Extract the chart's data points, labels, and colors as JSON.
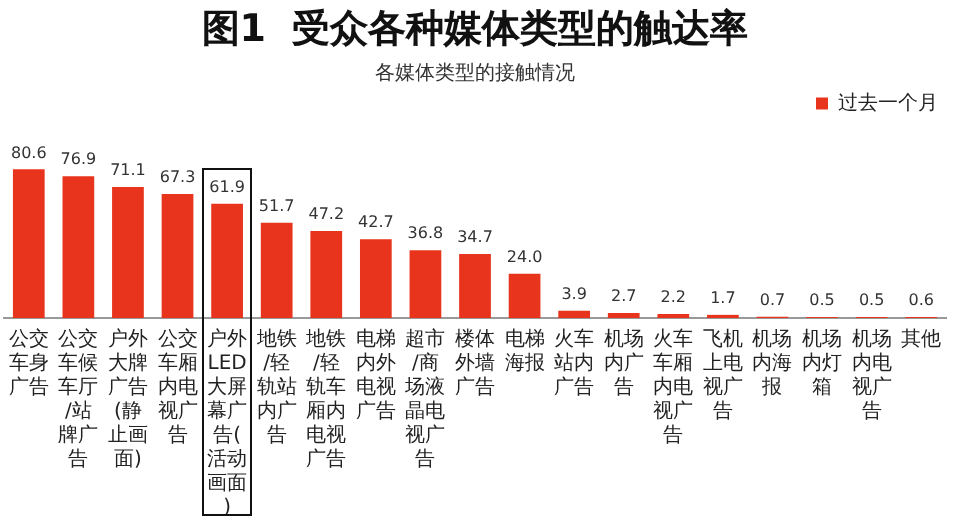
{
  "chart_data": {
    "type": "bar",
    "title": "图1  受众各种媒体类型的触达率",
    "subtitle": "各媒体类型的接触情况",
    "categories": [
      "公交车身广告",
      "公交车候车厅/站牌广告",
      "户外大牌广告(静止画面)",
      "公交车厢内电视广告",
      "户外LED大屏幕广告(活动画面)",
      "地铁/轻轨站内广告",
      "地铁/轻轨车厢内电视广告",
      "电梯内外电视广告",
      "超市/商场液晶电视广告",
      "楼体外墙广告",
      "电梯海报",
      "火车站内广告",
      "机场内广告",
      "火车车厢内电视广告",
      "飞机上电视广告",
      "机场内海报",
      "机场内灯箱",
      "机场内电视广告",
      "其他"
    ],
    "series": [
      {
        "name": "过去一个月",
        "color": "#e8341c",
        "values": [
          80.6,
          76.9,
          71.1,
          67.3,
          61.9,
          51.7,
          47.2,
          42.7,
          36.8,
          34.7,
          24.0,
          3.9,
          2.7,
          2.2,
          1.7,
          0.7,
          0.5,
          0.5,
          0.6
        ],
        "value_labels": [
          "80.6",
          "76.9",
          "71.1",
          "67.3",
          "61.9",
          "51.7",
          "47.2",
          "42.7",
          "36.8",
          "34.7",
          "24.0",
          "3.9",
          "2.7",
          "2.2",
          "1.7",
          "0.7",
          "0.5",
          "0.5",
          "0.6"
        ]
      }
    ],
    "legend": "top right",
    "tick_labels": "x",
    "grid": false
  }
}
